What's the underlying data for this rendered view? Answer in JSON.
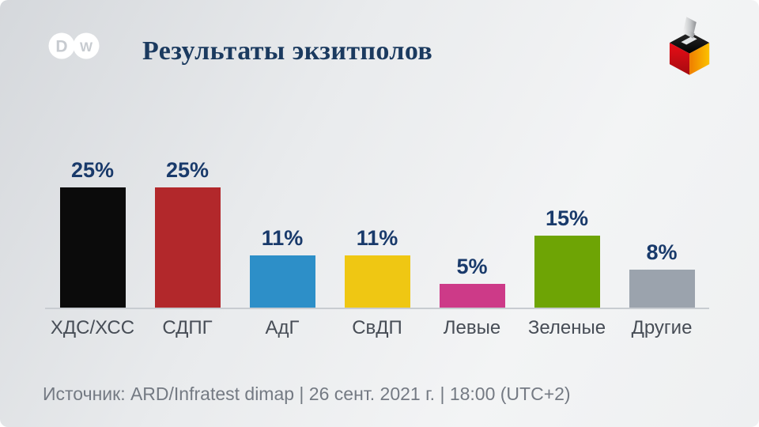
{
  "header": {
    "title": "Результаты экзитполов",
    "logo": {
      "letter_left": "D",
      "letter_right": "W"
    }
  },
  "ballot_icon": {
    "description": "ballot box in German flag colors with ballot being inserted",
    "colors": {
      "top_face": "#141414",
      "left_face_top": "#ea0c16",
      "left_face_bottom": "#a50b10",
      "right_face_start": "#ef7d00",
      "right_face_end": "#fcc200",
      "ballot_light": "#f5f5f5",
      "ballot_dark": "#8f9194",
      "slot": "#e3e5e7"
    }
  },
  "chart_data": {
    "type": "bar",
    "title": "Результаты экзитполов",
    "categories": [
      "ХДС/ХСС",
      "СДПГ",
      "АдГ",
      "СвДП",
      "Левые",
      "Зеленые",
      "Другие"
    ],
    "values": [
      25,
      25,
      11,
      11,
      5,
      15,
      8
    ],
    "value_labels": [
      "25%",
      "25%",
      "11%",
      "11%",
      "5%",
      "15%",
      "8%"
    ],
    "bar_colors": [
      "#0b0b0b",
      "#b2282b",
      "#2d8fc8",
      "#efc713",
      "#cd3a88",
      "#6ea405",
      "#9ba3ad"
    ],
    "xlabel": "",
    "ylabel": "",
    "ylim": [
      0,
      25
    ],
    "grid": false,
    "legend": false,
    "value_label_color": "#193a6b",
    "category_label_color": "#474d56",
    "axis_line_color": "#c8ccd1"
  },
  "footer": {
    "source": "Источник: ARD/Infratest dimap | 26 сент. 2021 г. | 18:00 (UTC+2)"
  },
  "theme": {
    "background_start": "#d5d8dc",
    "background_end": "#f3f4f5",
    "title_color": "#1b3a5f",
    "logo_glyph_color": "#c7cbd0",
    "logo_circle_color": "#ffffff"
  }
}
